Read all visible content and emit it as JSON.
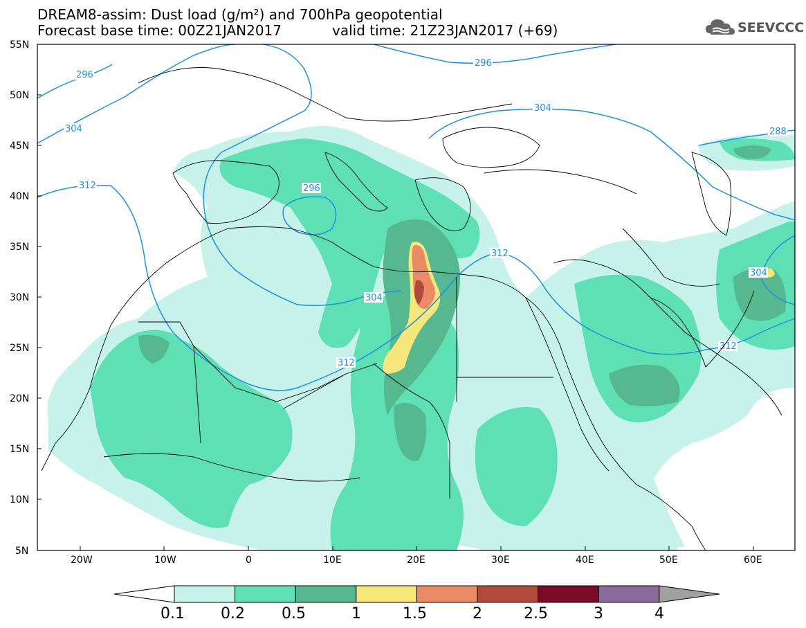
{
  "header": {
    "line1": "DREAM8-assim: Dust load (g/m²) and 700hPa geopotential",
    "line2": "Forecast base time: 00Z21JAN2017",
    "valid": "valid time: 21Z23JAN2017 (+69)"
  },
  "logo": {
    "text": "SEEVCCC",
    "icon": "cloud-icon"
  },
  "map": {
    "lat_labels": [
      "55N",
      "50N",
      "45N",
      "40N",
      "35N",
      "30N",
      "25N",
      "20N",
      "15N",
      "10N",
      "5N"
    ],
    "lon_labels": [
      "20W",
      "10W",
      "0",
      "10E",
      "20E",
      "30E",
      "40E",
      "50E",
      "60E"
    ],
    "contour_labels": [
      "296",
      "304",
      "312",
      "296",
      "296",
      "304",
      "288",
      "312",
      "304",
      "304",
      "312",
      "312"
    ],
    "colors": {
      "c1": "#c6f2ea",
      "c2": "#5fe0b4",
      "c3": "#55b890",
      "c4": "#f5e77a",
      "c5": "#ea8a66",
      "c6": "#b04a3a",
      "c7": "#7a0a2a",
      "c8": "#8a6a9a",
      "contour": "#1e90e0"
    }
  },
  "colorbar": {
    "labels": [
      "0.1",
      "0.2",
      "0.5",
      "1",
      "1.5",
      "2",
      "2.5",
      "3",
      "4"
    ],
    "colors": [
      "#c6f2ea",
      "#5fe0b4",
      "#55b890",
      "#f5e77a",
      "#ea8a66",
      "#b04a3a",
      "#7a0a2a",
      "#8a6a9a"
    ],
    "over_color": "#a0a0a0"
  }
}
